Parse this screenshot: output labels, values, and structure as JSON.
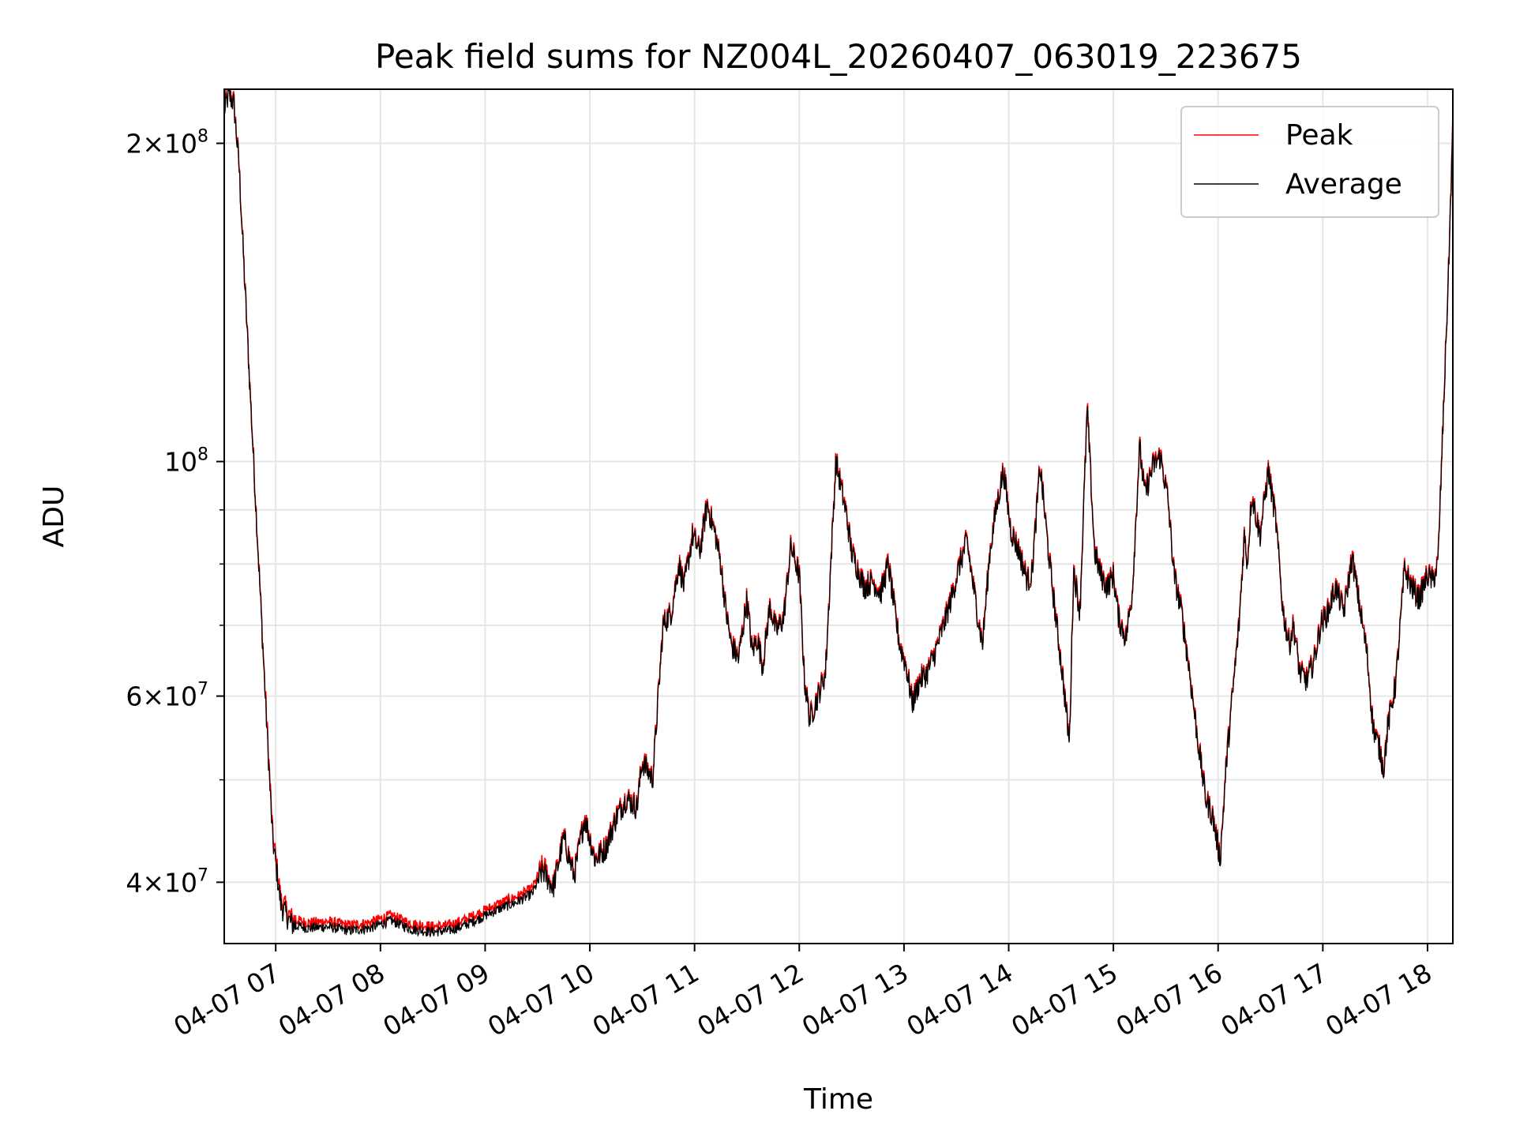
{
  "chart_data": {
    "type": "line",
    "title": "Peak field sums for NZ004L_20260407_063019_223675",
    "xlabel": "Time",
    "ylabel": "ADU",
    "yscale": "log",
    "ylim": [
      35000000,
      225000000
    ],
    "xlim_hours": [
      6.5083,
      18.2417
    ],
    "grid": true,
    "legend_position": "upper right",
    "x_ticks": [
      {
        "hour": 7,
        "label": "04-07 07"
      },
      {
        "hour": 8,
        "label": "04-07 08"
      },
      {
        "hour": 9,
        "label": "04-07 09"
      },
      {
        "hour": 10,
        "label": "04-07 10"
      },
      {
        "hour": 11,
        "label": "04-07 11"
      },
      {
        "hour": 12,
        "label": "04-07 12"
      },
      {
        "hour": 13,
        "label": "04-07 13"
      },
      {
        "hour": 14,
        "label": "04-07 14"
      },
      {
        "hour": 15,
        "label": "04-07 15"
      },
      {
        "hour": 16,
        "label": "04-07 16"
      },
      {
        "hour": 17,
        "label": "04-07 17"
      },
      {
        "hour": 18,
        "label": "04-07 18"
      }
    ],
    "y_major_ticks": [
      {
        "value": 40000000,
        "base": "4",
        "exp": "7"
      },
      {
        "value": 60000000,
        "base": "6",
        "exp": "7"
      },
      {
        "value": 100000000,
        "base": "",
        "exp": "8"
      },
      {
        "value": 200000000,
        "base": "2",
        "exp": "8"
      }
    ],
    "y_minor_ticks": [
      50000000,
      70000000,
      80000000,
      90000000
    ],
    "series": [
      {
        "name": "Peak",
        "color": "#ff0000",
        "offset_ratio": 1.012
      },
      {
        "name": "Average",
        "color": "#000000",
        "x_hours": [
          6.51,
          6.55,
          6.6,
          6.65,
          6.7,
          6.8,
          6.9,
          6.97,
          7.05,
          7.15,
          7.3,
          7.5,
          7.7,
          7.9,
          8.1,
          8.3,
          8.5,
          8.65,
          8.8,
          9.0,
          9.15,
          9.3,
          9.45,
          9.55,
          9.65,
          9.75,
          9.85,
          9.95,
          10.05,
          10.15,
          10.25,
          10.35,
          10.45,
          10.5,
          10.6,
          10.7,
          10.78,
          10.85,
          10.9,
          10.98,
          11.05,
          11.12,
          11.2,
          11.25,
          11.3,
          11.35,
          11.42,
          11.5,
          11.55,
          11.6,
          11.65,
          11.72,
          11.78,
          11.85,
          11.92,
          12.0,
          12.05,
          12.1,
          12.18,
          12.25,
          12.35,
          12.45,
          12.5,
          12.58,
          12.62,
          12.7,
          12.78,
          12.85,
          12.92,
          12.96,
          13.02,
          13.08,
          13.15,
          13.22,
          13.3,
          13.38,
          13.45,
          13.52,
          13.6,
          13.68,
          13.75,
          13.82,
          13.88,
          13.95,
          14.02,
          14.1,
          14.18,
          14.22,
          14.3,
          14.38,
          14.45,
          14.52,
          14.58,
          14.62,
          14.68,
          14.75,
          14.82,
          14.88,
          14.94,
          15.0,
          15.05,
          15.12,
          15.18,
          15.25,
          15.3,
          15.38,
          15.45,
          15.52,
          15.58,
          15.65,
          15.72,
          15.8,
          15.88,
          15.95,
          16.02,
          16.08,
          16.15,
          16.2,
          16.25,
          16.28,
          16.32,
          16.4,
          16.48,
          16.55,
          16.62,
          16.68,
          16.72,
          16.78,
          16.85,
          16.92,
          16.98,
          17.05,
          17.12,
          17.2,
          17.28,
          17.35,
          17.42,
          17.48,
          17.55,
          17.58,
          17.62,
          17.7,
          17.78,
          17.85,
          17.92,
          18.0,
          18.05,
          18.1,
          18.15,
          18.2,
          18.24
        ],
        "values": [
          215000000,
          222000000,
          218000000,
          190000000,
          150000000,
          95000000,
          60000000,
          44000000,
          38000000,
          36500000,
          36200000,
          36300000,
          36000000,
          36200000,
          36800000,
          36100000,
          35900000,
          36000000,
          36400000,
          37200000,
          37800000,
          38300000,
          39000000,
          41000000,
          39500000,
          44000000,
          40500000,
          46000000,
          42000000,
          43000000,
          46000000,
          48000000,
          47000000,
          52000000,
          50000000,
          70000000,
          72000000,
          80000000,
          76000000,
          85000000,
          82000000,
          91000000,
          85000000,
          80000000,
          72000000,
          67000000,
          65000000,
          74000000,
          66000000,
          68000000,
          64000000,
          73000000,
          69000000,
          71000000,
          83000000,
          78000000,
          62000000,
          57000000,
          60000000,
          63000000,
          100000000,
          89000000,
          82000000,
          78000000,
          76000000,
          77000000,
          75000000,
          80000000,
          71000000,
          67000000,
          64000000,
          59000000,
          62000000,
          63000000,
          66000000,
          70000000,
          74000000,
          79000000,
          84000000,
          74000000,
          67000000,
          82000000,
          90000000,
          98000000,
          86000000,
          82000000,
          77000000,
          78000000,
          99000000,
          82000000,
          71000000,
          62000000,
          54000000,
          79000000,
          72000000,
          112000000,
          82000000,
          78000000,
          76000000,
          78000000,
          71000000,
          68000000,
          75000000,
          103000000,
          93000000,
          99000000,
          101000000,
          92000000,
          78000000,
          72000000,
          64000000,
          55000000,
          48000000,
          46000000,
          42000000,
          52000000,
          62000000,
          70000000,
          85000000,
          80000000,
          93000000,
          85000000,
          98000000,
          88000000,
          72000000,
          67000000,
          70000000,
          63000000,
          62000000,
          65000000,
          70000000,
          72000000,
          76000000,
          72000000,
          81000000,
          73000000,
          66000000,
          56000000,
          53000000,
          51000000,
          56000000,
          62000000,
          79000000,
          76000000,
          74000000,
          78000000,
          77000000,
          80000000,
          110000000,
          150000000,
          205000000
        ]
      }
    ]
  }
}
